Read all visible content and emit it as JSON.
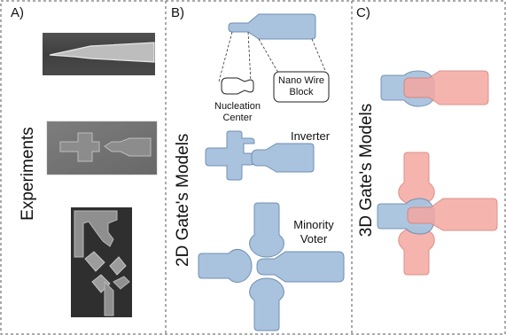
{
  "panels": {
    "a": {
      "letter": "A)",
      "title": "Experiments"
    },
    "b": {
      "letter": "B)",
      "title": "2D Gate's Models",
      "nucleation_label": [
        "Nucleation",
        "Center"
      ],
      "nanowire_label": [
        "Nano Wire",
        "Block"
      ],
      "inverter_label": "Inverter",
      "minority_label": [
        "Minority",
        "Voter"
      ]
    },
    "c": {
      "letter": "C)",
      "title": "3D Gate's Models"
    }
  },
  "colors": {
    "blue": "#a9c3de",
    "blue_stroke": "#6f8fb3",
    "red": "#f4a7a0",
    "red_stroke": "#d97d76",
    "overlap": "#b98a93",
    "border": "#555555"
  }
}
